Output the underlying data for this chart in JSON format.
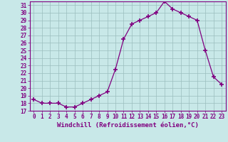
{
  "hours": [
    0,
    1,
    2,
    3,
    4,
    5,
    6,
    7,
    8,
    9,
    10,
    11,
    12,
    13,
    14,
    15,
    16,
    17,
    18,
    19,
    20,
    21,
    22,
    23
  ],
  "values": [
    18.5,
    18.0,
    18.0,
    18.0,
    17.5,
    17.5,
    18.0,
    18.5,
    19.0,
    19.5,
    22.5,
    26.5,
    28.5,
    29.0,
    29.5,
    30.0,
    31.5,
    30.5,
    30.0,
    29.5,
    29.0,
    25.0,
    21.5,
    20.5
  ],
  "line_color": "#800080",
  "marker": "+",
  "marker_size": 4,
  "bg_color": "#c8e8e8",
  "grid_color": "#9bbebe",
  "xlabel": "Windchill (Refroidissement éolien,°C)",
  "ylabel": "",
  "ylim": [
    17,
    31.5
  ],
  "xlim": [
    -0.5,
    23.5
  ],
  "yticks": [
    17,
    18,
    19,
    20,
    21,
    22,
    23,
    24,
    25,
    26,
    27,
    28,
    29,
    30,
    31
  ],
  "xticks": [
    0,
    1,
    2,
    3,
    4,
    5,
    6,
    7,
    8,
    9,
    10,
    11,
    12,
    13,
    14,
    15,
    16,
    17,
    18,
    19,
    20,
    21,
    22,
    23
  ],
  "title_color": "#800080",
  "axis_color": "#800080",
  "tick_label_color": "#800080",
  "xlabel_fontsize": 6.5,
  "tick_fontsize": 5.5
}
